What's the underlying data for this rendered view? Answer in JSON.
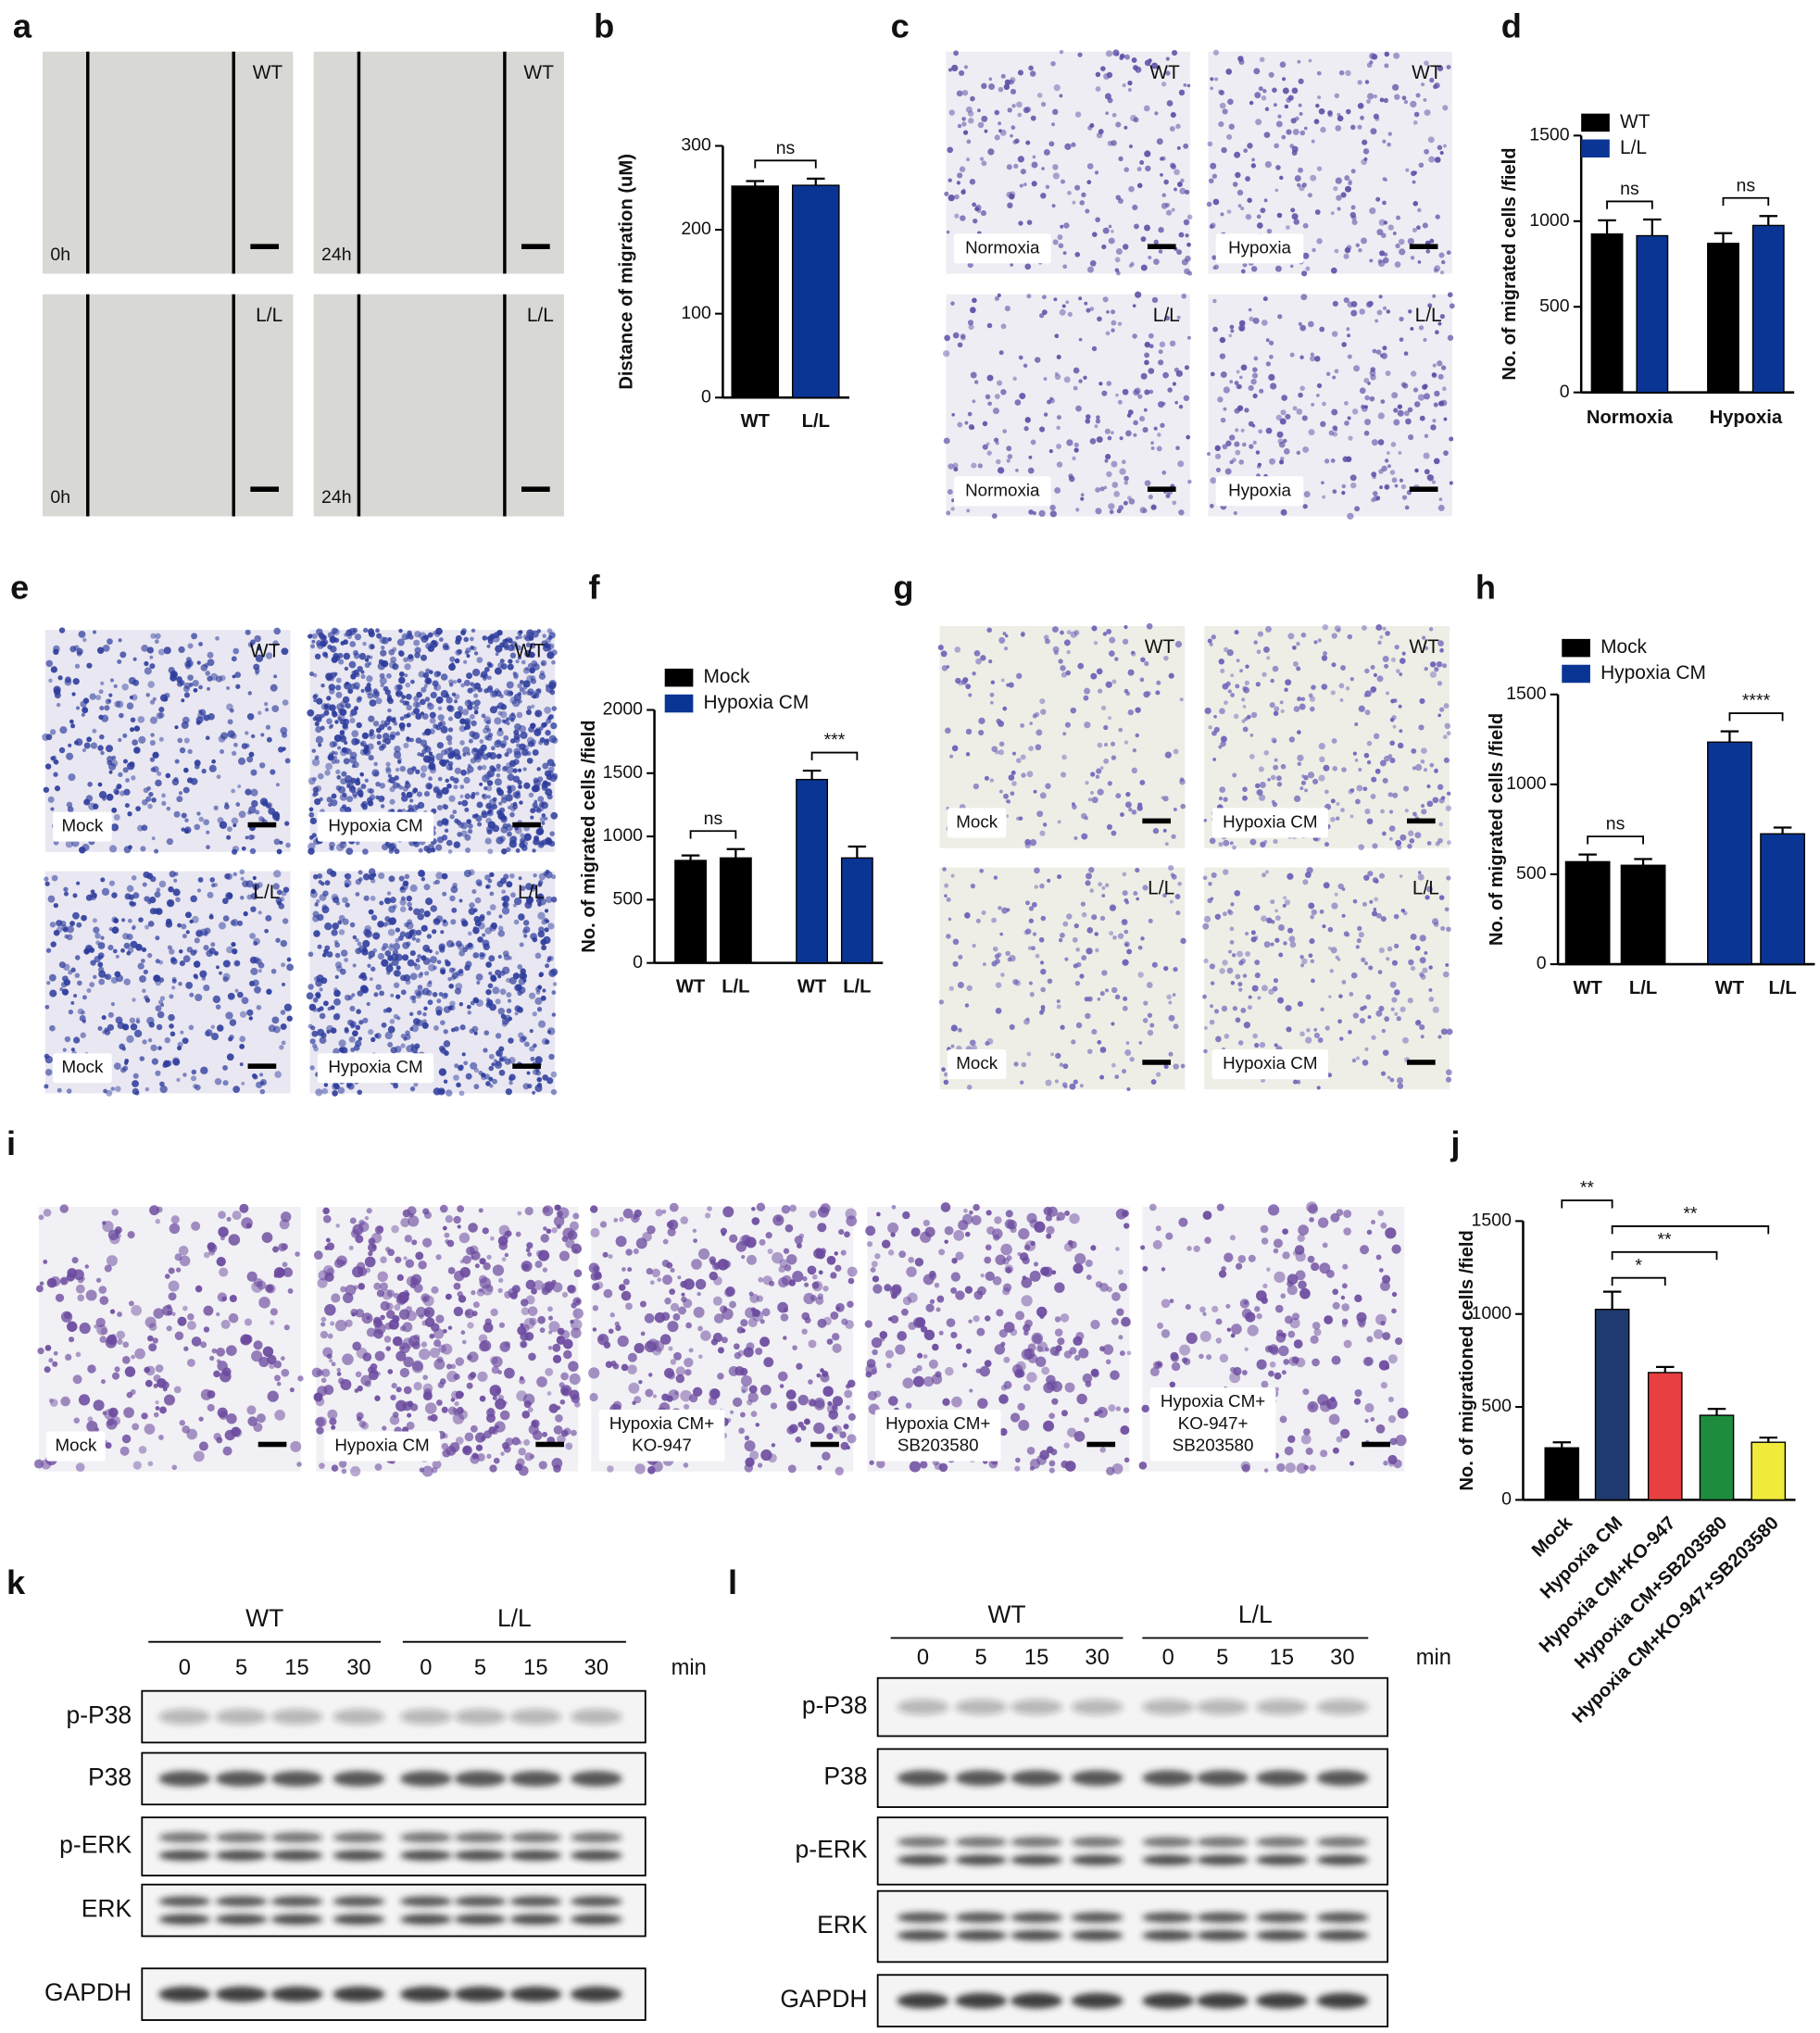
{
  "panel_letters": [
    "a",
    "b",
    "c",
    "d",
    "e",
    "f",
    "g",
    "h",
    "i",
    "j",
    "k",
    "l"
  ],
  "image_panels": {
    "a": [
      {
        "corner": "WT",
        "caption": [
          "0h"
        ]
      },
      {
        "corner": "WT",
        "caption": [
          "24h"
        ]
      },
      {
        "corner": "L/L",
        "caption": [
          "0h"
        ]
      },
      {
        "corner": "L/L",
        "caption": [
          "24h"
        ]
      }
    ],
    "c": [
      {
        "corner": "WT",
        "caption": [
          "Normoxia"
        ]
      },
      {
        "corner": "WT",
        "caption": [
          "Hypoxia"
        ]
      },
      {
        "corner": "L/L",
        "caption": [
          "Normoxia"
        ]
      },
      {
        "corner": "L/L",
        "caption": [
          "Hypoxia"
        ]
      }
    ],
    "e": [
      {
        "corner": "WT",
        "caption": [
          "Mock"
        ]
      },
      {
        "corner": "WT",
        "caption": [
          "Hypoxia CM"
        ]
      },
      {
        "corner": "L/L",
        "caption": [
          "Mock"
        ]
      },
      {
        "corner": "L/L",
        "caption": [
          "Hypoxia CM"
        ]
      }
    ],
    "g": [
      {
        "corner": "WT",
        "caption": [
          "Mock"
        ]
      },
      {
        "corner": "WT",
        "caption": [
          "Hypoxia CM"
        ]
      },
      {
        "corner": "L/L",
        "caption": [
          "Mock"
        ]
      },
      {
        "corner": "L/L",
        "caption": [
          "Hypoxia CM"
        ]
      }
    ],
    "i": [
      {
        "caption": [
          "Mock"
        ]
      },
      {
        "caption": [
          "Hypoxia CM"
        ]
      },
      {
        "caption": [
          "Hypoxia CM+",
          "KO-947"
        ]
      },
      {
        "caption": [
          "Hypoxia CM+",
          "SB203580"
        ]
      },
      {
        "caption": [
          "Hypoxia CM+",
          "KO-947+",
          "SB203580"
        ]
      }
    ]
  },
  "chart_data": [
    {
      "type": "bar",
      "y_label": "Distance of migration (uM)",
      "categories": [
        "WT",
        "L/L"
      ],
      "values": [
        252,
        253
      ],
      "errors": [
        6,
        8
      ],
      "colors": [
        "#000000",
        "#0b3595"
      ],
      "ylim": [
        0,
        300
      ],
      "yticks": [
        0,
        100,
        200,
        300
      ],
      "annotations": [
        {
          "text": "ns",
          "from": "WT",
          "to": "L/L"
        }
      ]
    },
    {
      "type": "bar",
      "y_label": "No. of migrated cells /field",
      "categories": [
        "Normoxia",
        "Hypoxia"
      ],
      "series": [
        {
          "name": "WT",
          "color": "#000000",
          "values": [
            925,
            870
          ],
          "errors": [
            80,
            60
          ]
        },
        {
          "name": "L/L",
          "color": "#0b3595",
          "values": [
            915,
            975
          ],
          "errors": [
            95,
            55
          ]
        }
      ],
      "ylim": [
        0,
        1500
      ],
      "yticks": [
        0,
        500,
        1000,
        1500
      ],
      "annotations": [
        {
          "text": "ns",
          "category": "Normoxia"
        },
        {
          "text": "ns",
          "category": "Hypoxia"
        }
      ]
    },
    {
      "type": "bar",
      "y_label": "No. of migrated cells /field",
      "series": [
        {
          "name": "Mock",
          "color": "#000000",
          "categories": [
            "WT",
            "L/L"
          ],
          "values": [
            810,
            830
          ],
          "errors": [
            40,
            70
          ]
        },
        {
          "name": "Hypoxia CM",
          "color": "#0b3595",
          "categories": [
            "WT",
            "L/L"
          ],
          "values": [
            1450,
            830
          ],
          "errors": [
            70,
            90
          ]
        }
      ],
      "ylim": [
        0,
        2000
      ],
      "yticks": [
        0,
        500,
        1000,
        1500,
        2000
      ],
      "annotations": [
        {
          "text": "ns",
          "series": "Mock"
        },
        {
          "text": "***",
          "series": "Hypoxia CM"
        }
      ]
    },
    {
      "type": "bar",
      "y_label": "No. of migrated cells /field",
      "series": [
        {
          "name": "Mock",
          "color": "#000000",
          "categories": [
            "WT",
            "L/L"
          ],
          "values": [
            570,
            550
          ],
          "errors": [
            40,
            35
          ]
        },
        {
          "name": "Hypoxia CM",
          "color": "#0b3595",
          "categories": [
            "WT",
            "L/L"
          ],
          "values": [
            1235,
            725
          ],
          "errors": [
            60,
            35
          ]
        }
      ],
      "ylim": [
        0,
        1500
      ],
      "yticks": [
        0,
        500,
        1000,
        1500
      ],
      "annotations": [
        {
          "text": "ns",
          "series": "Mock"
        },
        {
          "text": "****",
          "series": "Hypoxia CM"
        }
      ]
    },
    {
      "type": "bar",
      "y_label": "No. of migrationed cells /field",
      "categories": [
        "Mock",
        "Hypoxia CM",
        "Hypoxia CM+KO-947",
        "Hypoxia CM+SB203580",
        "Hypoxia CM+KO-947+SB203580"
      ],
      "values": [
        280,
        1025,
        685,
        455,
        310
      ],
      "errors": [
        30,
        95,
        30,
        35,
        25
      ],
      "colors": [
        "#000000",
        "#1f3a6e",
        "#e84040",
        "#1e8c3e",
        "#f0ea3a"
      ],
      "ylim": [
        0,
        1500
      ],
      "yticks": [
        0,
        500,
        1000,
        1500
      ],
      "annotations": [
        {
          "text": "**",
          "from": "Mock",
          "to": "Hypoxia CM"
        },
        {
          "text": "**",
          "from": "Hypoxia CM",
          "to": "Hypoxia CM+KO-947+SB203580"
        },
        {
          "text": "**",
          "from": "Hypoxia CM",
          "to": "Hypoxia CM+SB203580"
        },
        {
          "text": "*",
          "from": "Hypoxia CM",
          "to": "Hypoxia CM+KO-947"
        }
      ]
    }
  ],
  "blots": [
    {
      "groups": [
        "WT",
        "L/L"
      ],
      "lanes": [
        "0",
        "5",
        "15",
        "30",
        "0",
        "5",
        "15",
        "30"
      ],
      "unit": "min",
      "rows": [
        "p-P38",
        "P38",
        "p-ERK",
        "ERK",
        "GAPDH"
      ]
    },
    {
      "groups": [
        "WT",
        "L/L"
      ],
      "lanes": [
        "0",
        "5",
        "15",
        "30",
        "0",
        "5",
        "15",
        "30"
      ],
      "unit": "min",
      "rows": [
        "p-P38",
        "P38",
        "p-ERK",
        "ERK",
        "GAPDH"
      ]
    }
  ]
}
